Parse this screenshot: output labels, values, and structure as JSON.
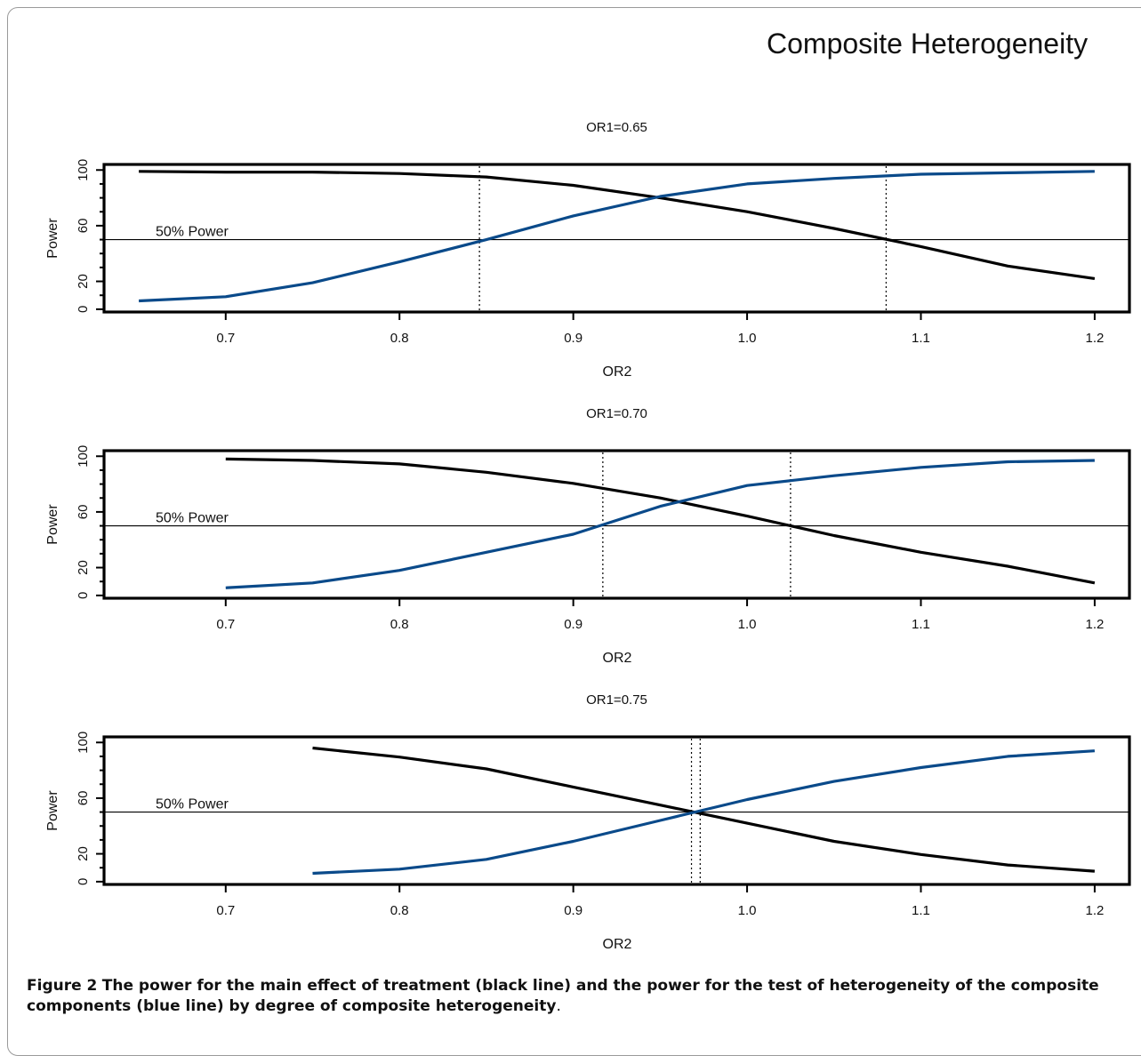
{
  "main_title": "Composite Heterogeneity",
  "caption": {
    "label": "Figure 2",
    "text": "The power for the main effect of treatment (black line) and the power for the test of heterogeneity of the composite components (blue line) by degree of composite heterogeneity",
    "end": "."
  },
  "colors": {
    "main_effect": "#000000",
    "heterogeneity": "#0a4a8a",
    "reference": "#000000"
  },
  "chart_data": [
    {
      "type": "line",
      "title": "OR1=0.65",
      "xlabel": "OR2",
      "ylabel": "Power",
      "xlim": [
        0.63,
        1.22
      ],
      "ylim": [
        -2,
        104
      ],
      "xticks": [
        "0.7",
        "0.8",
        "0.9",
        "1.0",
        "1.1",
        "1.2"
      ],
      "yticks": [
        "0",
        "20",
        "60",
        "100"
      ],
      "reference_line": {
        "y": 50,
        "label": "50% Power"
      },
      "crossings": [
        0.846,
        1.08
      ],
      "series": [
        {
          "x": [
            0.65,
            0.7,
            0.75,
            0.8,
            0.85,
            0.9,
            0.95,
            1.0,
            1.05,
            1.1,
            1.15,
            1.2
          ],
          "y": [
            99,
            98.5,
            98.5,
            97.5,
            95,
            89,
            80,
            70,
            58,
            45,
            31,
            22
          ]
        },
        {
          "x": [
            0.65,
            0.7,
            0.75,
            0.8,
            0.85,
            0.9,
            0.95,
            1.0,
            1.05,
            1.1,
            1.15,
            1.2
          ],
          "y": [
            6,
            9,
            19,
            34,
            50,
            67,
            81,
            90,
            94,
            97,
            98,
            99
          ]
        }
      ]
    },
    {
      "type": "line",
      "title": "OR1=0.70",
      "xlabel": "OR2",
      "ylabel": "Power",
      "xlim": [
        0.63,
        1.22
      ],
      "ylim": [
        -2,
        104
      ],
      "xticks": [
        "0.7",
        "0.8",
        "0.9",
        "1.0",
        "1.1",
        "1.2"
      ],
      "yticks": [
        "0",
        "20",
        "60",
        "100"
      ],
      "reference_line": {
        "y": 50,
        "label": "50% Power"
      },
      "crossings": [
        0.917,
        1.025
      ],
      "series": [
        {
          "x": [
            0.7,
            0.75,
            0.8,
            0.85,
            0.9,
            0.95,
            1.0,
            1.05,
            1.1,
            1.15,
            1.2
          ],
          "y": [
            98,
            97,
            94.5,
            88.5,
            80.5,
            70,
            57,
            43,
            31,
            21,
            9
          ]
        },
        {
          "x": [
            0.7,
            0.75,
            0.8,
            0.85,
            0.9,
            0.95,
            1.0,
            1.05,
            1.1,
            1.15,
            1.2
          ],
          "y": [
            5.5,
            9,
            18,
            31,
            44,
            64,
            79,
            86,
            92,
            96,
            97
          ]
        }
      ]
    },
    {
      "type": "line",
      "title": "OR1=0.75",
      "xlabel": "OR2",
      "ylabel": "Power",
      "xlim": [
        0.63,
        1.22
      ],
      "ylim": [
        -2,
        104
      ],
      "xticks": [
        "0.7",
        "0.8",
        "0.9",
        "1.0",
        "1.1",
        "1.2"
      ],
      "yticks": [
        "0",
        "20",
        "60",
        "100"
      ],
      "reference_line": {
        "y": 50,
        "label": "50% Power"
      },
      "crossings": [
        0.968,
        0.973
      ],
      "series": [
        {
          "x": [
            0.75,
            0.8,
            0.85,
            0.9,
            0.95,
            1.0,
            1.05,
            1.1,
            1.15,
            1.2
          ],
          "y": [
            96,
            89.5,
            81,
            68,
            55,
            42,
            29,
            19.5,
            12,
            7.5
          ]
        },
        {
          "x": [
            0.75,
            0.8,
            0.85,
            0.9,
            0.95,
            1.0,
            1.05,
            1.1,
            1.15,
            1.2
          ],
          "y": [
            6,
            9,
            16,
            29,
            44,
            59,
            72,
            82,
            90,
            94
          ]
        }
      ]
    }
  ]
}
